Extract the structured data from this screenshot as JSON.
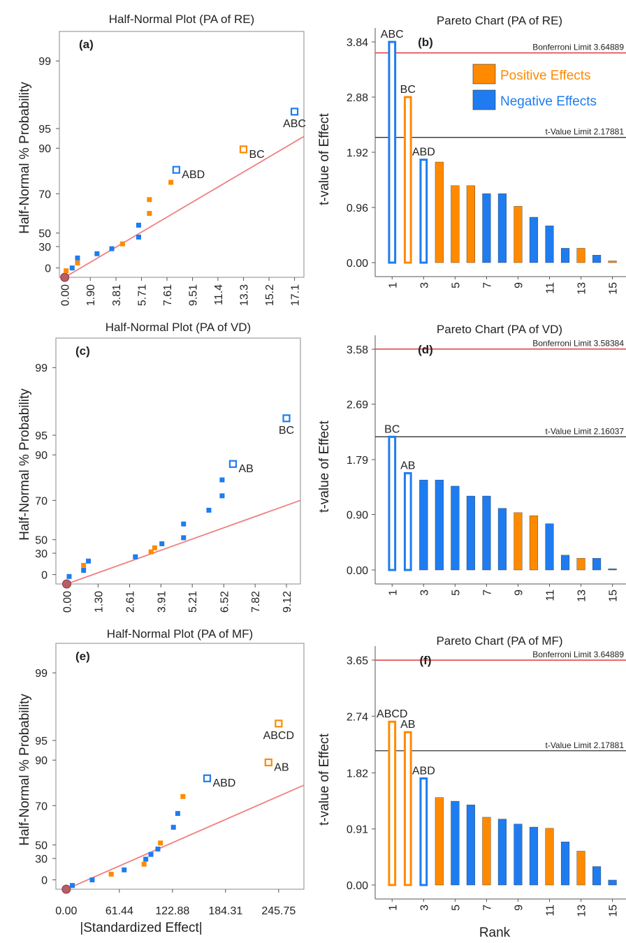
{
  "colors": {
    "positive": "#ff8a00",
    "negative": "#1e7cf0",
    "fit_line": "#ef8080",
    "bonferroni_line": "#e0494c",
    "t_limit_line": "#333333",
    "origin_point": "#b85c66"
  },
  "legend": {
    "positive_label": "Positive Effects",
    "negative_label": "Negative Effects"
  },
  "chart_data": [
    {
      "id": "a",
      "panel_label": "(a)",
      "type": "scatter",
      "title": "Half-Normal Plot (PA of RE)",
      "ylabel": "Half-Normal % Probability",
      "xlabel": "",
      "x_ticks": [
        "0.00",
        "1.90",
        "3.81",
        "5.71",
        "7.61",
        "9.51",
        "11.4",
        "13.3",
        "15.2",
        "17.1"
      ],
      "y_ticks": [
        "0",
        "30",
        "50",
        "70",
        "90",
        "95",
        "99"
      ],
      "xlim": [
        -0.4,
        17.8
      ],
      "points": [
        {
          "x": 0.0,
          "y": -10,
          "kind": "origin"
        },
        {
          "x": 0.1,
          "y": -3,
          "kind": "positive",
          "hollow": false
        },
        {
          "x": 0.55,
          "y": 0,
          "kind": "negative",
          "hollow": false
        },
        {
          "x": 0.95,
          "y": 7,
          "kind": "positive",
          "hollow": false
        },
        {
          "x": 0.95,
          "y": 14,
          "kind": "negative",
          "hollow": false
        },
        {
          "x": 2.4,
          "y": 20,
          "kind": "negative",
          "hollow": false
        },
        {
          "x": 3.5,
          "y": 27,
          "kind": "negative",
          "hollow": false
        },
        {
          "x": 4.3,
          "y": 34,
          "kind": "positive",
          "hollow": false
        },
        {
          "x": 5.5,
          "y": 44,
          "kind": "negative",
          "hollow": false
        },
        {
          "x": 5.5,
          "y": 54,
          "kind": "negative",
          "hollow": false
        },
        {
          "x": 6.3,
          "y": 60,
          "kind": "positive",
          "hollow": false
        },
        {
          "x": 6.3,
          "y": 67,
          "kind": "positive",
          "hollow": false
        },
        {
          "x": 7.9,
          "y": 75,
          "kind": "positive",
          "hollow": false
        },
        {
          "x": 8.3,
          "y": 80.5,
          "kind": "negative",
          "hollow": true,
          "label": "ABD"
        },
        {
          "x": 13.3,
          "y": 89.5,
          "kind": "positive",
          "hollow": true,
          "label": "BC"
        },
        {
          "x": 17.1,
          "y": 96,
          "kind": "negative",
          "hollow": true,
          "label": "ABC"
        }
      ],
      "fit_line": {
        "x": [
          0.0,
          17.8
        ],
        "y": [
          -10,
          93
        ]
      }
    },
    {
      "id": "b",
      "panel_label": "(b)",
      "type": "bar",
      "title": "Pareto Chart (PA of RE)",
      "ylabel": "t-value of Effect",
      "xlabel": "",
      "y_ticks": [
        "0.00",
        "0.96",
        "1.92",
        "2.88",
        "3.84"
      ],
      "ylim": [
        0,
        3.84
      ],
      "x_ticks": [
        1,
        3,
        5,
        7,
        9,
        11,
        13,
        15
      ],
      "bonferroni": {
        "label": "Bonferroni Limit 3.64889",
        "value": 3.64889
      },
      "t_limit": {
        "label": "t-Value Limit 2.17881",
        "value": 2.17881
      },
      "bars": [
        {
          "rank": 1,
          "value": 3.84,
          "kind": "negative",
          "hollow": true,
          "label": "ABC"
        },
        {
          "rank": 2,
          "value": 2.88,
          "kind": "positive",
          "hollow": true,
          "label": "BC"
        },
        {
          "rank": 3,
          "value": 1.79,
          "kind": "negative",
          "hollow": true,
          "label": "ABD"
        },
        {
          "rank": 4,
          "value": 1.75,
          "kind": "positive"
        },
        {
          "rank": 5,
          "value": 1.34,
          "kind": "positive"
        },
        {
          "rank": 6,
          "value": 1.34,
          "kind": "positive"
        },
        {
          "rank": 7,
          "value": 1.2,
          "kind": "negative"
        },
        {
          "rank": 8,
          "value": 1.2,
          "kind": "negative"
        },
        {
          "rank": 9,
          "value": 0.98,
          "kind": "positive"
        },
        {
          "rank": 10,
          "value": 0.79,
          "kind": "negative"
        },
        {
          "rank": 11,
          "value": 0.64,
          "kind": "negative"
        },
        {
          "rank": 12,
          "value": 0.25,
          "kind": "negative"
        },
        {
          "rank": 13,
          "value": 0.25,
          "kind": "positive"
        },
        {
          "rank": 14,
          "value": 0.13,
          "kind": "negative"
        },
        {
          "rank": 15,
          "value": 0.03,
          "kind": "positive"
        }
      ],
      "show_legend": true
    },
    {
      "id": "c",
      "panel_label": "(c)",
      "type": "scatter",
      "title": "Half-Normal Plot (PA of VD)",
      "ylabel": "Half-Normal % Probability",
      "xlabel": "",
      "x_ticks": [
        "0.00",
        "1.30",
        "2.61",
        "3.91",
        "5.21",
        "6.52",
        "7.82",
        "9.12"
      ],
      "y_ticks": [
        "0",
        "30",
        "50",
        "70",
        "90",
        "95",
        "99"
      ],
      "xlim": [
        -0.45,
        9.7
      ],
      "points": [
        {
          "x": 0.0,
          "y": -10,
          "kind": "origin"
        },
        {
          "x": 0.1,
          "y": -2,
          "kind": "negative",
          "hollow": false
        },
        {
          "x": 0.7,
          "y": 6,
          "kind": "negative",
          "hollow": false
        },
        {
          "x": 0.7,
          "y": 13,
          "kind": "positive",
          "hollow": false
        },
        {
          "x": 0.9,
          "y": 19,
          "kind": "negative",
          "hollow": false
        },
        {
          "x": 2.85,
          "y": 25,
          "kind": "negative",
          "hollow": false
        },
        {
          "x": 3.5,
          "y": 32,
          "kind": "positive",
          "hollow": false
        },
        {
          "x": 3.65,
          "y": 38,
          "kind": "positive",
          "hollow": false
        },
        {
          "x": 3.95,
          "y": 44,
          "kind": "negative",
          "hollow": false
        },
        {
          "x": 4.85,
          "y": 51,
          "kind": "negative",
          "hollow": false
        },
        {
          "x": 4.85,
          "y": 58,
          "kind": "negative",
          "hollow": false
        },
        {
          "x": 5.9,
          "y": 65,
          "kind": "negative",
          "hollow": false
        },
        {
          "x": 6.45,
          "y": 72,
          "kind": "negative",
          "hollow": false
        },
        {
          "x": 6.45,
          "y": 79,
          "kind": "negative",
          "hollow": false
        },
        {
          "x": 6.9,
          "y": 86,
          "kind": "negative",
          "hollow": true,
          "label": "AB"
        },
        {
          "x": 9.12,
          "y": 96,
          "kind": "negative",
          "hollow": true,
          "label": "BC"
        }
      ],
      "fit_line": {
        "x": [
          0.0,
          9.7
        ],
        "y": [
          -10,
          70
        ]
      }
    },
    {
      "id": "d",
      "panel_label": "(d)",
      "type": "bar",
      "title": "Pareto Chart (PA of VD)",
      "ylabel": "t-value of Effect",
      "xlabel": "",
      "y_ticks": [
        "0.00",
        "0.90",
        "1.79",
        "2.69",
        "3.58"
      ],
      "ylim": [
        0,
        3.58
      ],
      "x_ticks": [
        1,
        3,
        5,
        7,
        9,
        11,
        13,
        15
      ],
      "bonferroni": {
        "label": "Bonferroni Limit 3.58384",
        "value": 3.58384
      },
      "t_limit": {
        "label": "t-Value Limit 2.16037",
        "value": 2.16037
      },
      "bars": [
        {
          "rank": 1,
          "value": 2.16,
          "kind": "negative",
          "hollow": true,
          "label": "BC"
        },
        {
          "rank": 2,
          "value": 1.57,
          "kind": "negative",
          "hollow": true,
          "label": "AB"
        },
        {
          "rank": 3,
          "value": 1.46,
          "kind": "negative"
        },
        {
          "rank": 4,
          "value": 1.46,
          "kind": "negative"
        },
        {
          "rank": 5,
          "value": 1.36,
          "kind": "negative"
        },
        {
          "rank": 6,
          "value": 1.2,
          "kind": "negative"
        },
        {
          "rank": 7,
          "value": 1.2,
          "kind": "negative"
        },
        {
          "rank": 8,
          "value": 1.0,
          "kind": "negative"
        },
        {
          "rank": 9,
          "value": 0.93,
          "kind": "positive"
        },
        {
          "rank": 10,
          "value": 0.88,
          "kind": "positive"
        },
        {
          "rank": 11,
          "value": 0.75,
          "kind": "negative"
        },
        {
          "rank": 12,
          "value": 0.24,
          "kind": "negative"
        },
        {
          "rank": 13,
          "value": 0.19,
          "kind": "positive"
        },
        {
          "rank": 14,
          "value": 0.19,
          "kind": "negative"
        },
        {
          "rank": 15,
          "value": 0.02,
          "kind": "negative"
        }
      ],
      "show_legend": false
    },
    {
      "id": "e",
      "panel_label": "(e)",
      "type": "scatter",
      "title": "Half-Normal Plot (PA of MF)",
      "ylabel": "Half-Normal % Probability",
      "xlabel": "|Standardized Effect|",
      "x_ticks": [
        "0.00",
        "61.44",
        "122.88",
        "184.31",
        "245.75"
      ],
      "y_ticks": [
        "0",
        "30",
        "50",
        "70",
        "90",
        "95",
        "99"
      ],
      "xlim": [
        -12,
        275
      ],
      "points": [
        {
          "x": 0.0,
          "y": -10,
          "kind": "origin"
        },
        {
          "x": 7,
          "y": -6,
          "kind": "negative",
          "hollow": false
        },
        {
          "x": 30,
          "y": 0,
          "kind": "negative",
          "hollow": false
        },
        {
          "x": 52,
          "y": 8,
          "kind": "positive",
          "hollow": false
        },
        {
          "x": 67,
          "y": 14,
          "kind": "negative",
          "hollow": false
        },
        {
          "x": 90,
          "y": 22,
          "kind": "positive",
          "hollow": false
        },
        {
          "x": 92,
          "y": 29,
          "kind": "negative",
          "hollow": false
        },
        {
          "x": 98,
          "y": 36,
          "kind": "negative",
          "hollow": false
        },
        {
          "x": 106,
          "y": 44,
          "kind": "negative",
          "hollow": false
        },
        {
          "x": 109,
          "y": 51,
          "kind": "positive",
          "hollow": false
        },
        {
          "x": 124,
          "y": 59,
          "kind": "negative",
          "hollow": false
        },
        {
          "x": 129,
          "y": 66,
          "kind": "negative",
          "hollow": false
        },
        {
          "x": 135,
          "y": 74,
          "kind": "positive",
          "hollow": false
        },
        {
          "x": 163,
          "y": 82,
          "kind": "negative",
          "hollow": true,
          "label": "ABD"
        },
        {
          "x": 234,
          "y": 89,
          "kind": "positive",
          "hollow": true,
          "label": "AB"
        },
        {
          "x": 245.75,
          "y": 96,
          "kind": "positive",
          "hollow": true,
          "label": "ABCD"
        }
      ],
      "fit_line": {
        "x": [
          0,
          275
        ],
        "y": [
          -10,
          79
        ]
      }
    },
    {
      "id": "f",
      "panel_label": "(f)",
      "type": "bar",
      "title": "Pareto Chart (PA of MF)",
      "ylabel": "t-value of Effect",
      "xlabel": "Rank",
      "y_ticks": [
        "0.00",
        "0.91",
        "1.82",
        "2.74",
        "3.65"
      ],
      "ylim": [
        0,
        3.65
      ],
      "x_ticks": [
        1,
        3,
        5,
        7,
        9,
        11,
        13,
        15
      ],
      "bonferroni": {
        "label": "Bonferroni Limit 3.64889",
        "value": 3.64889
      },
      "t_limit": {
        "label": "t-Value Limit 2.17881",
        "value": 2.17881
      },
      "bars": [
        {
          "rank": 1,
          "value": 2.65,
          "kind": "positive",
          "hollow": true,
          "label": "ABCD"
        },
        {
          "rank": 2,
          "value": 2.48,
          "kind": "positive",
          "hollow": true,
          "label": "AB"
        },
        {
          "rank": 3,
          "value": 1.73,
          "kind": "negative",
          "hollow": true,
          "label": "ABD"
        },
        {
          "rank": 4,
          "value": 1.42,
          "kind": "positive"
        },
        {
          "rank": 5,
          "value": 1.36,
          "kind": "negative"
        },
        {
          "rank": 6,
          "value": 1.3,
          "kind": "negative"
        },
        {
          "rank": 7,
          "value": 1.1,
          "kind": "positive"
        },
        {
          "rank": 8,
          "value": 1.07,
          "kind": "negative"
        },
        {
          "rank": 9,
          "value": 0.99,
          "kind": "negative"
        },
        {
          "rank": 10,
          "value": 0.94,
          "kind": "negative"
        },
        {
          "rank": 11,
          "value": 0.92,
          "kind": "positive"
        },
        {
          "rank": 12,
          "value": 0.7,
          "kind": "negative"
        },
        {
          "rank": 13,
          "value": 0.55,
          "kind": "positive"
        },
        {
          "rank": 14,
          "value": 0.3,
          "kind": "negative"
        },
        {
          "rank": 15,
          "value": 0.08,
          "kind": "negative"
        }
      ],
      "show_legend": false
    }
  ]
}
